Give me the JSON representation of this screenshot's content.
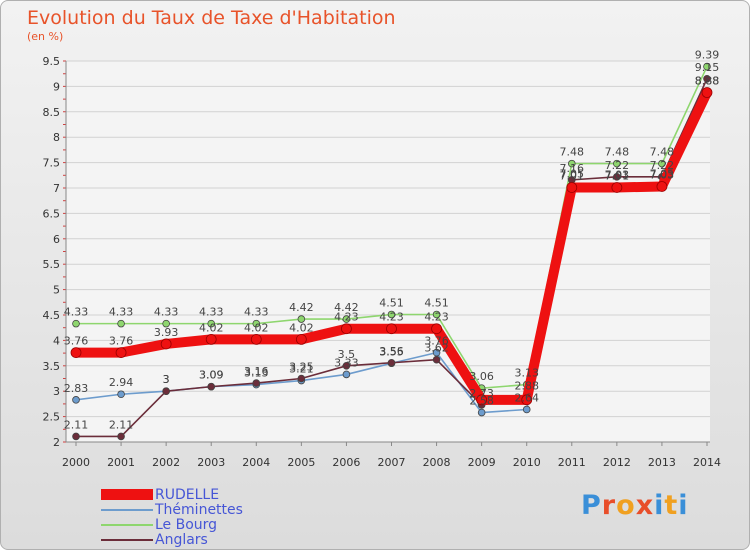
{
  "chart_data": {
    "type": "line",
    "title": "Evolution du Taux de Taxe d'Habitation",
    "ylabel": "(en %)",
    "ylim": [
      2,
      9.5
    ],
    "yticks": [
      "2",
      "2.5",
      "3",
      "3.5",
      "4",
      "4.5",
      "5",
      "5.5",
      "6",
      "6.5",
      "7",
      "7.5",
      "8",
      "8.5",
      "9",
      "9.5"
    ],
    "categories": [
      "2000",
      "2001",
      "2002",
      "2003",
      "2004",
      "2005",
      "2006",
      "2007",
      "2008",
      "2009",
      "2010",
      "2011",
      "2012",
      "2013",
      "2014"
    ],
    "series": [
      {
        "name": "RUDELLE",
        "color": "#ee1111",
        "values": [
          3.76,
          3.76,
          3.93,
          4.02,
          4.02,
          4.02,
          4.23,
          4.23,
          4.23,
          2.83,
          2.83,
          7.01,
          7.01,
          7.03,
          8.88
        ],
        "labels": [
          "3.76",
          "3.76",
          "3.93",
          "4.02",
          "4.02",
          "4.02",
          "4.23",
          "4.23",
          "4.23",
          "",
          "",
          "7.01",
          "7.01",
          "7.03",
          "8.88"
        ]
      },
      {
        "name": "Théminettes",
        "color": "#6d9ccd",
        "values": [
          2.83,
          2.94,
          3,
          3.09,
          3.13,
          3.21,
          3.33,
          3.55,
          3.76,
          2.58,
          2.64,
          7.05,
          7.03,
          7.05,
          8.88
        ],
        "labels": [
          "2.83",
          "2.94",
          "3",
          "3.09",
          "3.13",
          "3.21",
          "3.33",
          "3.55",
          "3.76",
          "2.58",
          "2.64",
          "7.05",
          "7.03",
          "7.05",
          "8.88"
        ]
      },
      {
        "name": "Le Bourg",
        "color": "#8ed66e",
        "values": [
          4.33,
          4.33,
          4.33,
          4.33,
          4.33,
          4.42,
          4.42,
          4.51,
          4.51,
          3.06,
          3.13,
          7.48,
          7.48,
          7.48,
          9.39
        ],
        "labels": [
          "4.33",
          "4.33",
          "4.33",
          "4.33",
          "4.33",
          "4.42",
          "4.42",
          "4.51",
          "4.51",
          "3.06",
          "3.13",
          "7.48",
          "7.48",
          "7.48",
          "9.39"
        ]
      },
      {
        "name": "Anglars",
        "color": "#6b2d3a",
        "values": [
          2.11,
          2.11,
          3,
          3.09,
          3.16,
          3.25,
          3.5,
          3.56,
          3.62,
          2.73,
          2.88,
          7.16,
          7.22,
          7.22,
          9.15
        ],
        "labels": [
          "2.11",
          "2.11",
          "3",
          "3.09",
          "3.16",
          "3.25",
          "3.5",
          "3.56",
          "3.62",
          "2.73",
          "2.88",
          "7.16",
          "7.22",
          "7.22",
          "9.15"
        ]
      }
    ],
    "legend": "bottom-left"
  },
  "brand": {
    "logo_letters": [
      "P",
      "r",
      "o",
      "x",
      "i",
      "t",
      "i"
    ],
    "logo_colors": [
      "#3a8fd8",
      "#e84e2a",
      "#f0a020",
      "#e84e2a",
      "#3a8fd8",
      "#f0a020",
      "#3a8fd8"
    ]
  }
}
